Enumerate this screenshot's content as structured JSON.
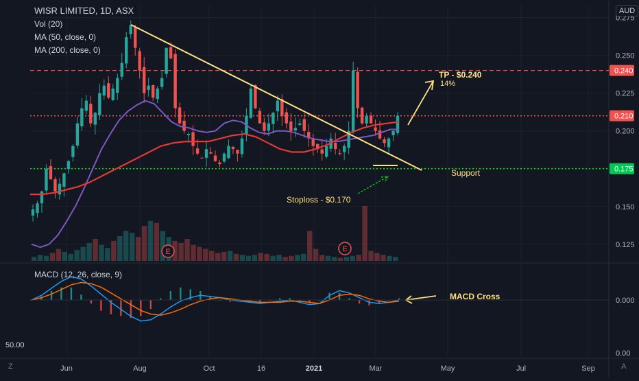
{
  "header": {
    "symbol_line": "WISR LIMITED, 1D, ASX",
    "indicators": [
      "Vol (20)",
      "MA (50, close, 0)",
      "MA (200, close, 0)"
    ],
    "macd_label": "MACD (12, 26, close, 9)",
    "currency": "AUD"
  },
  "colors": {
    "background": "#131722",
    "grid": "#1e222d",
    "up_candle": "#26a69a",
    "down_candle": "#ef5350",
    "ma50": "#7e57c2",
    "ma200": "#e53935",
    "trendline": "#ffe082",
    "tp_line": "#ef5350",
    "support_line": "#00e600",
    "macd": "#2196f3",
    "signal": "#ff6d00",
    "annotation": "#ffe082",
    "stoploss_arrow": "#00e600"
  },
  "footer": {
    "left_icon": "Z",
    "right_icon": "A",
    "corner_label": "50.00"
  },
  "chart_data": [
    {
      "type": "candlestick",
      "title": "WISR LIMITED, 1D, ASX",
      "x_ticks": [
        "Jun",
        "Aug",
        "Oct",
        "16",
        "2021",
        "Mar",
        "May",
        "Jul",
        "Sep"
      ],
      "y_ticks": [
        "0.275",
        "0.250",
        "0.225",
        "0.200",
        "0.175",
        "0.150",
        "0.125"
      ],
      "ylim": [
        0.114,
        0.283
      ],
      "grid": true,
      "scale": "linear",
      "price_close_series": [
        0.148,
        0.152,
        0.16,
        0.175,
        0.168,
        0.16,
        0.165,
        0.172,
        0.18,
        0.19,
        0.205,
        0.215,
        0.22,
        0.205,
        0.212,
        0.225,
        0.23,
        0.222,
        0.228,
        0.235,
        0.245,
        0.262,
        0.27,
        0.255,
        0.24,
        0.225,
        0.23,
        0.222,
        0.228,
        0.235,
        0.255,
        0.248,
        0.215,
        0.205,
        0.2,
        0.198,
        0.19,
        0.185,
        0.182,
        0.188,
        0.185,
        0.18,
        0.178,
        0.185,
        0.19,
        0.188,
        0.185,
        0.195,
        0.21,
        0.228,
        0.215,
        0.205,
        0.2,
        0.205,
        0.212,
        0.22,
        0.21,
        0.205,
        0.2,
        0.202,
        0.205,
        0.2,
        0.195,
        0.19,
        0.188,
        0.185,
        0.19,
        0.195,
        0.188,
        0.185,
        0.19,
        0.2,
        0.24,
        0.215,
        0.205,
        0.21,
        0.205,
        0.2,
        0.195,
        0.192,
        0.195,
        0.2,
        0.21
      ],
      "ma50_series": [
        0.125,
        0.123,
        0.125,
        0.131,
        0.14,
        0.15,
        0.162,
        0.175,
        0.188,
        0.198,
        0.207,
        0.213,
        0.217,
        0.22,
        0.218,
        0.212,
        0.206,
        0.203,
        0.202,
        0.2,
        0.199,
        0.2,
        0.205,
        0.207,
        0.206,
        0.202,
        0.199,
        0.198,
        0.2,
        0.2,
        0.199,
        0.197,
        0.195,
        0.194,
        0.193,
        0.193,
        0.194,
        0.195,
        0.196,
        0.197,
        0.199,
        0.201,
        0.201
      ],
      "ma200_series": [
        0.158,
        0.158,
        0.159,
        0.161,
        0.163,
        0.166,
        0.17,
        0.174,
        0.178,
        0.182,
        0.186,
        0.19,
        0.192,
        0.193,
        0.193,
        0.193,
        0.195,
        0.197,
        0.198,
        0.196,
        0.192,
        0.188,
        0.186,
        0.186,
        0.188,
        0.191,
        0.195,
        0.199,
        0.202,
        0.204,
        0.205,
        0.206
      ],
      "price_labels": [
        {
          "text": "0.240",
          "value": 0.24,
          "color": "#ef5350"
        },
        {
          "text": "0.210",
          "value": 0.21,
          "color": "#ef5350"
        },
        {
          "text": "0.175",
          "value": 0.175,
          "color": "#00c853"
        }
      ],
      "horizontal_lines": [
        {
          "value": 0.24,
          "style": "dashed",
          "color": "#ef5350"
        },
        {
          "value": 0.21,
          "style": "dotted",
          "color": "#ef5350"
        },
        {
          "value": 0.175,
          "style": "dotted",
          "color": "#00e600"
        }
      ],
      "trendline": {
        "x": [
          "Jul",
          "Apr"
        ],
        "y": [
          0.276,
          0.177
        ]
      },
      "annotations": [
        {
          "text": "TP - $0.240",
          "color": "#ffe082"
        },
        {
          "text": "14%",
          "color": "#ffe082"
        },
        {
          "text": "Support",
          "color": "#ffe082"
        },
        {
          "text": "Stoploss - $0.170",
          "color": "#ffe082"
        }
      ],
      "earnings_markers": [
        "E",
        "E"
      ],
      "volume_series": [
        4,
        6,
        5,
        8,
        12,
        9,
        7,
        11,
        14,
        18,
        22,
        16,
        13,
        20,
        25,
        30,
        28,
        24,
        35,
        40,
        38,
        30,
        24,
        20,
        18,
        22,
        16,
        14,
        12,
        10,
        8,
        9,
        10,
        7,
        6,
        5,
        6,
        8,
        7,
        5,
        6,
        4,
        5,
        6,
        7,
        30,
        12,
        6,
        5,
        4,
        3,
        4,
        5,
        6,
        55,
        10,
        8,
        6,
        5,
        4
      ]
    },
    {
      "type": "line",
      "title": "MACD (12, 26, close, 9)",
      "y_ticks": [
        "0.000",
        "0.00"
      ],
      "annotation": "MACD Cross",
      "series": [
        {
          "name": "MACD",
          "values": [
            0.0,
            0.004,
            0.01,
            0.016,
            0.02,
            0.018,
            0.012,
            0.005,
            -0.002,
            -0.008,
            -0.014,
            -0.018,
            -0.017,
            -0.012,
            -0.006,
            -0.001,
            0.002,
            0.004,
            0.003,
            0.002,
            0.0,
            -0.001,
            -0.002,
            -0.003,
            -0.002,
            -0.001,
            0.0,
            -0.002,
            -0.004,
            -0.003,
            0.004,
            0.008,
            0.006,
            0.002,
            -0.002,
            -0.003,
            -0.002,
            0.0
          ]
        },
        {
          "name": "Signal",
          "values": [
            0.0,
            0.002,
            0.005,
            0.009,
            0.013,
            0.015,
            0.014,
            0.011,
            0.006,
            0.001,
            -0.004,
            -0.009,
            -0.012,
            -0.013,
            -0.011,
            -0.008,
            -0.004,
            -0.001,
            0.001,
            0.002,
            0.001,
            0.0,
            -0.001,
            -0.002,
            -0.002,
            -0.002,
            -0.001,
            -0.001,
            -0.002,
            -0.003,
            0.0,
            0.004,
            0.005,
            0.004,
            0.001,
            -0.001,
            -0.002,
            -0.001
          ]
        }
      ]
    }
  ]
}
